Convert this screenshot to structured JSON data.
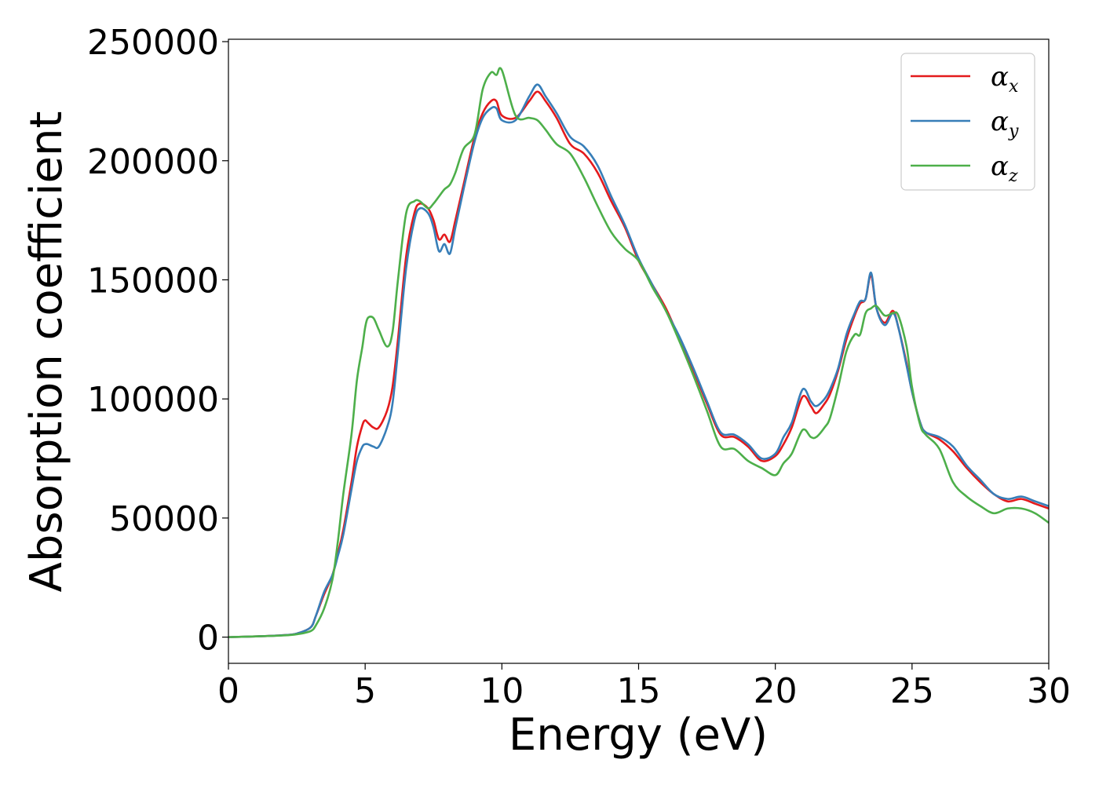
{
  "chart_data": {
    "type": "line",
    "title": "",
    "xlabel": "Energy (eV)",
    "ylabel": "Absorption coefficient",
    "xlim": [
      0,
      30
    ],
    "ylim": [
      -11000,
      251000
    ],
    "xticks": [
      0,
      5,
      10,
      15,
      20,
      25,
      30
    ],
    "yticks": [
      0,
      50000,
      100000,
      150000,
      200000,
      250000
    ],
    "grid": false,
    "legend_position": "top-right",
    "series": [
      {
        "name": "αx",
        "symbol": "α",
        "subscript": "x",
        "color": "#e41a1c",
        "x": [
          0,
          1,
          2,
          2.5,
          3,
          3.2,
          3.5,
          3.8,
          4.0,
          4.2,
          4.5,
          4.7,
          4.9,
          5.0,
          5.1,
          5.3,
          5.5,
          5.8,
          6.0,
          6.2,
          6.5,
          6.8,
          7.0,
          7.3,
          7.5,
          7.7,
          7.9,
          8.1,
          8.3,
          8.6,
          9.0,
          9.3,
          9.6,
          9.8,
          10.0,
          10.5,
          11.0,
          11.3,
          11.6,
          12.0,
          12.5,
          13.0,
          13.5,
          14.0,
          14.5,
          15.0,
          15.5,
          16.0,
          16.5,
          17.0,
          17.5,
          18.0,
          18.5,
          19.0,
          19.5,
          20.0,
          20.3,
          20.6,
          21.0,
          21.3,
          21.5,
          21.8,
          22.0,
          22.3,
          22.6,
          22.9,
          23.1,
          23.3,
          23.5,
          23.7,
          24.0,
          24.3,
          24.5,
          24.8,
          25.0,
          25.3,
          25.5,
          26.0,
          26.5,
          27.0,
          27.5,
          28.0,
          28.5,
          29.0,
          29.5,
          30.0
        ],
        "y": [
          0,
          300,
          800,
          1500,
          4000,
          9000,
          18000,
          26000,
          35000,
          45000,
          65000,
          80000,
          89000,
          91000,
          90000,
          88000,
          88000,
          95000,
          105000,
          125000,
          160000,
          178000,
          182000,
          180000,
          175000,
          167000,
          169000,
          166000,
          175000,
          190000,
          210000,
          220000,
          225000,
          225000,
          219000,
          218000,
          225000,
          229000,
          225000,
          218000,
          207000,
          203000,
          195000,
          183000,
          172000,
          158000,
          148000,
          138000,
          125000,
          112000,
          98000,
          85000,
          84000,
          80000,
          74000,
          76000,
          81000,
          88000,
          101000,
          97000,
          94000,
          98000,
          102000,
          112000,
          125000,
          135000,
          140000,
          142000,
          152000,
          138000,
          132000,
          137000,
          130000,
          115000,
          103000,
          90000,
          86000,
          83000,
          78000,
          71000,
          65000,
          60000,
          57000,
          58000,
          56000,
          54000
        ]
      },
      {
        "name": "αy",
        "symbol": "α",
        "subscript": "y",
        "color": "#377eb8",
        "x": [
          0,
          1,
          2,
          2.5,
          3,
          3.2,
          3.5,
          3.8,
          4.0,
          4.2,
          4.5,
          4.7,
          4.9,
          5.0,
          5.1,
          5.3,
          5.5,
          5.8,
          6.0,
          6.2,
          6.5,
          6.8,
          7.0,
          7.3,
          7.5,
          7.7,
          7.9,
          8.1,
          8.3,
          8.6,
          9.0,
          9.3,
          9.6,
          9.8,
          10.0,
          10.5,
          11.0,
          11.3,
          11.6,
          12.0,
          12.5,
          13.0,
          13.5,
          14.0,
          14.5,
          15.0,
          15.5,
          16.0,
          16.5,
          17.0,
          17.5,
          18.0,
          18.5,
          19.0,
          19.5,
          20.0,
          20.3,
          20.6,
          21.0,
          21.3,
          21.5,
          21.8,
          22.0,
          22.3,
          22.6,
          22.9,
          23.1,
          23.3,
          23.5,
          23.7,
          24.0,
          24.3,
          24.5,
          24.8,
          25.0,
          25.3,
          25.5,
          26.0,
          26.5,
          27.0,
          27.5,
          28.0,
          28.5,
          29.0,
          29.5,
          30.0
        ],
        "y": [
          0,
          300,
          800,
          1500,
          4000,
          9000,
          19000,
          26000,
          34000,
          43000,
          62000,
          74000,
          80000,
          81000,
          81000,
          80000,
          80000,
          88000,
          98000,
          120000,
          155000,
          175000,
          180000,
          178000,
          172000,
          162000,
          165000,
          161000,
          172000,
          188000,
          208000,
          218000,
          222000,
          222000,
          217000,
          217000,
          227000,
          232000,
          227000,
          220000,
          210000,
          206000,
          198000,
          185000,
          173000,
          159000,
          148000,
          137000,
          126000,
          113000,
          99000,
          86000,
          85000,
          81000,
          75000,
          77000,
          84000,
          90000,
          104000,
          99000,
          97000,
          100000,
          104000,
          113000,
          127000,
          136000,
          141000,
          142000,
          153000,
          138000,
          131000,
          136000,
          130000,
          114000,
          103000,
          90000,
          86000,
          84000,
          80000,
          72000,
          66000,
          60000,
          58000,
          59000,
          57000,
          55000
        ]
      },
      {
        "name": "αz",
        "symbol": "α",
        "subscript": "z",
        "color": "#4daf4a",
        "x": [
          0,
          1,
          2,
          2.5,
          3,
          3.2,
          3.5,
          3.8,
          4.0,
          4.2,
          4.5,
          4.7,
          4.9,
          5.0,
          5.1,
          5.3,
          5.5,
          5.8,
          6.0,
          6.2,
          6.5,
          6.8,
          7.0,
          7.3,
          7.5,
          7.7,
          7.9,
          8.1,
          8.3,
          8.6,
          9.0,
          9.3,
          9.6,
          9.8,
          10.0,
          10.5,
          11.0,
          11.3,
          11.6,
          12.0,
          12.5,
          13.0,
          13.5,
          14.0,
          14.5,
          15.0,
          15.5,
          16.0,
          16.5,
          17.0,
          17.5,
          18.0,
          18.5,
          19.0,
          19.5,
          20.0,
          20.3,
          20.6,
          21.0,
          21.3,
          21.5,
          21.8,
          22.0,
          22.3,
          22.6,
          22.9,
          23.1,
          23.3,
          23.5,
          23.7,
          24.0,
          24.3,
          24.5,
          24.8,
          25.0,
          25.3,
          25.5,
          26.0,
          26.5,
          27.0,
          27.5,
          28.0,
          28.5,
          29.0,
          29.5,
          30.0
        ],
        "y": [
          0,
          300,
          700,
          1200,
          2500,
          5000,
          12000,
          24000,
          40000,
          60000,
          85000,
          108000,
          122000,
          130000,
          134000,
          134000,
          129000,
          122000,
          128000,
          150000,
          178000,
          183000,
          183000,
          180000,
          182000,
          185000,
          188000,
          190000,
          195000,
          205000,
          211000,
          230000,
          237000,
          236000,
          238000,
          219000,
          218000,
          217000,
          213000,
          207000,
          203000,
          193000,
          181000,
          170000,
          163000,
          158000,
          147000,
          137000,
          124000,
          110000,
          95000,
          80000,
          79000,
          74000,
          71000,
          68000,
          73000,
          77000,
          87000,
          84000,
          84000,
          88000,
          92000,
          105000,
          120000,
          127000,
          127000,
          136000,
          138000,
          139000,
          135000,
          136000,
          135000,
          122000,
          105000,
          89000,
          85000,
          79000,
          65000,
          59000,
          55000,
          52000,
          54000,
          54000,
          52000,
          48000
        ]
      }
    ]
  }
}
